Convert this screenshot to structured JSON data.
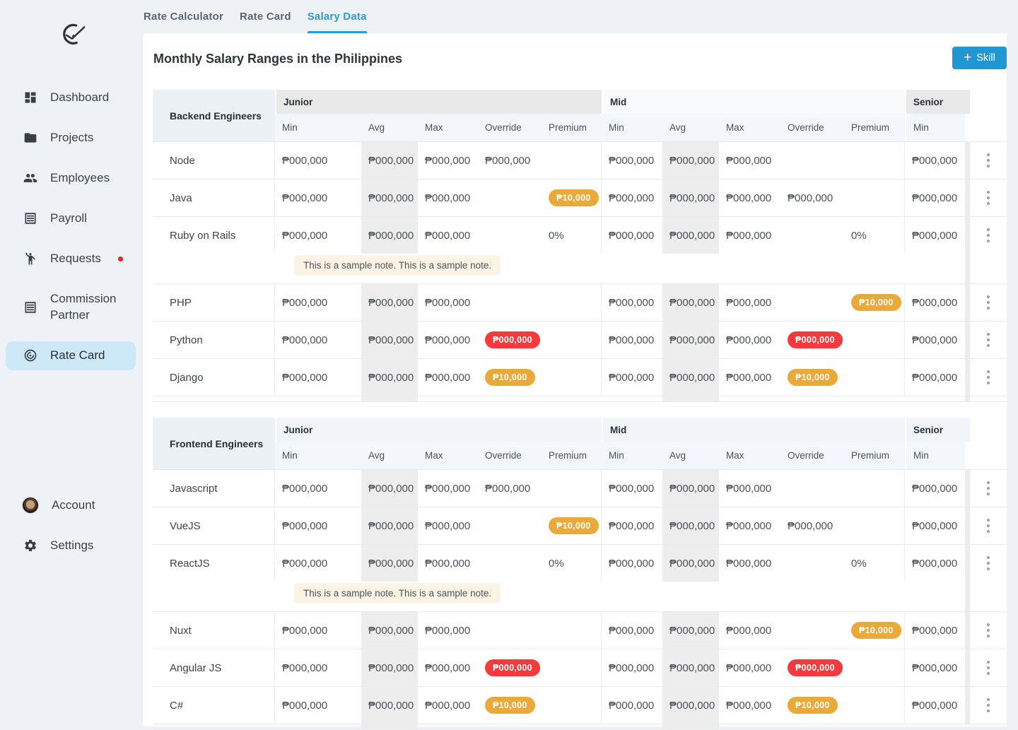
{
  "app": {
    "logo": "check-logo"
  },
  "colors": {
    "accent_blue": "#1f97d3",
    "active_tab_blue": "#2a9cd6",
    "active_item_bg": "#cde8f6",
    "badge_orange": "#e9a93b",
    "badge_red": "#f5393d",
    "notification_red": "#f71f1f",
    "avg_stripe": "#ededed",
    "note_bg": "#fbf3e3"
  },
  "sidebar": {
    "items": [
      {
        "label": "Dashboard",
        "icon": "dashboard-icon",
        "active": false
      },
      {
        "label": "Projects",
        "icon": "folder-icon",
        "active": false
      },
      {
        "label": "Employees",
        "icon": "people-icon",
        "active": false
      },
      {
        "label": "Payroll",
        "icon": "receipt-icon",
        "active": false
      },
      {
        "label": "Requests",
        "icon": "person-wave-icon",
        "active": false,
        "notification_dot": true
      },
      {
        "label": "Commission Partner",
        "icon": "receipt-icon",
        "active": false
      },
      {
        "label": "Rate Card",
        "icon": "payments-icon",
        "active": true
      }
    ],
    "footer_items": [
      {
        "label": "Account",
        "icon": "avatar"
      },
      {
        "label": "Settings",
        "icon": "gear-icon"
      }
    ]
  },
  "tabs": [
    {
      "label": "Rate Calculator",
      "active": false
    },
    {
      "label": "Rate Card",
      "active": false
    },
    {
      "label": "Salary Data",
      "active": true
    }
  ],
  "header": {
    "title": "Monthly Salary Ranges in the Philippines",
    "add_button_label": "Skill"
  },
  "tables": [
    {
      "title": "Backend Engineers",
      "band_bg": [
        "#e9e9e9",
        "#f8fafc",
        "#e9e9e9"
      ],
      "column_groups": [
        {
          "label": "Junior",
          "columns": [
            "Min",
            "Avg",
            "Max",
            "Override",
            "Premium"
          ]
        },
        {
          "label": "Mid",
          "columns": [
            "Min",
            "Avg",
            "Max",
            "Override",
            "Premium"
          ]
        },
        {
          "label": "Senior",
          "columns": [
            "Min"
          ]
        }
      ],
      "rows": [
        {
          "skill": "Node",
          "cells": [
            {
              "text": "₱000,000",
              "style": "text"
            },
            {
              "text": "₱000,000",
              "style": "text"
            },
            {
              "text": "₱000,000",
              "style": "text"
            },
            {
              "text": "₱000,000",
              "style": "text"
            },
            null,
            {
              "text": "₱000,000",
              "style": "text"
            },
            {
              "text": "₱000,000",
              "style": "text"
            },
            {
              "text": "₱000,000",
              "style": "text"
            },
            null,
            null,
            {
              "text": "₱000,000",
              "style": "text"
            }
          ],
          "note": null
        },
        {
          "skill": "Java",
          "cells": [
            {
              "text": "₱000,000",
              "style": "text"
            },
            {
              "text": "₱000,000",
              "style": "text"
            },
            {
              "text": "₱000,000",
              "style": "text"
            },
            null,
            {
              "text": "₱10,000",
              "style": "badge-orange"
            },
            {
              "text": "₱000,000",
              "style": "text"
            },
            {
              "text": "₱000,000",
              "style": "text"
            },
            {
              "text": "₱000,000",
              "style": "text"
            },
            {
              "text": "₱000,000",
              "style": "text"
            },
            null,
            {
              "text": "₱000,000",
              "style": "text"
            }
          ],
          "note": null
        },
        {
          "skill": "Ruby on Rails",
          "cells": [
            {
              "text": "₱000,000",
              "style": "text"
            },
            {
              "text": "₱000,000",
              "style": "text"
            },
            {
              "text": "₱000,000",
              "style": "text"
            },
            null,
            {
              "text": "0%",
              "style": "text"
            },
            {
              "text": "₱000,000",
              "style": "text"
            },
            {
              "text": "₱000,000",
              "style": "text"
            },
            {
              "text": "₱000,000",
              "style": "text"
            },
            null,
            {
              "text": "0%",
              "style": "text"
            },
            {
              "text": "₱000,000",
              "style": "text"
            }
          ],
          "note": "This is a sample note. This is a sample note."
        },
        {
          "skill": "PHP",
          "cells": [
            {
              "text": "₱000,000",
              "style": "text"
            },
            {
              "text": "₱000,000",
              "style": "text"
            },
            {
              "text": "₱000,000",
              "style": "text"
            },
            null,
            null,
            {
              "text": "₱000,000",
              "style": "text"
            },
            {
              "text": "₱000,000",
              "style": "text"
            },
            {
              "text": "₱000,000",
              "style": "text"
            },
            null,
            {
              "text": "₱10,000",
              "style": "badge-orange"
            },
            {
              "text": "₱000,000",
              "style": "text"
            }
          ],
          "note": null
        },
        {
          "skill": "Python",
          "cells": [
            {
              "text": "₱000,000",
              "style": "text"
            },
            {
              "text": "₱000,000",
              "style": "text"
            },
            {
              "text": "₱000,000",
              "style": "text"
            },
            {
              "text": "₱000,000",
              "style": "badge-red"
            },
            null,
            {
              "text": "₱000,000",
              "style": "text"
            },
            {
              "text": "₱000,000",
              "style": "text"
            },
            {
              "text": "₱000,000",
              "style": "text"
            },
            {
              "text": "₱000,000",
              "style": "badge-red"
            },
            null,
            {
              "text": "₱000,000",
              "style": "text"
            }
          ],
          "note": null
        },
        {
          "skill": "Django",
          "cells": [
            {
              "text": "₱000,000",
              "style": "text"
            },
            {
              "text": "₱000,000",
              "style": "text"
            },
            {
              "text": "₱000,000",
              "style": "text"
            },
            {
              "text": "₱10,000",
              "style": "badge-orange"
            },
            null,
            {
              "text": "₱000,000",
              "style": "text"
            },
            {
              "text": "₱000,000",
              "style": "text"
            },
            {
              "text": "₱000,000",
              "style": "text"
            },
            {
              "text": "₱10,000",
              "style": "badge-orange"
            },
            null,
            {
              "text": "₱000,000",
              "style": "text"
            }
          ],
          "note": null
        }
      ],
      "sliver_badges": false
    },
    {
      "title": "Frontend Engineers",
      "band_bg": [
        "#f1f5f9",
        "#f1f5f9",
        "#f1f5f9"
      ],
      "column_groups": [
        {
          "label": "Junior",
          "columns": [
            "Min",
            "Avg",
            "Max",
            "Override",
            "Premium"
          ]
        },
        {
          "label": "Mid",
          "columns": [
            "Min",
            "Avg",
            "Max",
            "Override",
            "Premium"
          ]
        },
        {
          "label": "Senior",
          "columns": [
            "Min"
          ]
        }
      ],
      "rows": [
        {
          "skill": "Javascript",
          "cells": [
            {
              "text": "₱000,000",
              "style": "text"
            },
            {
              "text": "₱000,000",
              "style": "text"
            },
            {
              "text": "₱000,000",
              "style": "text"
            },
            {
              "text": "₱000,000",
              "style": "text"
            },
            null,
            {
              "text": "₱000,000",
              "style": "text"
            },
            {
              "text": "₱000,000",
              "style": "text"
            },
            {
              "text": "₱000,000",
              "style": "text"
            },
            null,
            null,
            {
              "text": "₱000,000",
              "style": "text"
            }
          ],
          "note": null
        },
        {
          "skill": "VueJS",
          "cells": [
            {
              "text": "₱000,000",
              "style": "text"
            },
            {
              "text": "₱000,000",
              "style": "text"
            },
            {
              "text": "₱000,000",
              "style": "text"
            },
            null,
            {
              "text": "₱10,000",
              "style": "badge-orange"
            },
            {
              "text": "₱000,000",
              "style": "text"
            },
            {
              "text": "₱000,000",
              "style": "text"
            },
            {
              "text": "₱000,000",
              "style": "text"
            },
            {
              "text": "₱000,000",
              "style": "text"
            },
            null,
            {
              "text": "₱000,000",
              "style": "text"
            }
          ],
          "note": null
        },
        {
          "skill": "ReactJS",
          "cells": [
            {
              "text": "₱000,000",
              "style": "text"
            },
            {
              "text": "₱000,000",
              "style": "text"
            },
            {
              "text": "₱000,000",
              "style": "text"
            },
            null,
            {
              "text": "0%",
              "style": "text"
            },
            {
              "text": "₱000,000",
              "style": "text"
            },
            {
              "text": "₱000,000",
              "style": "text"
            },
            {
              "text": "₱000,000",
              "style": "text"
            },
            null,
            {
              "text": "0%",
              "style": "text"
            },
            {
              "text": "₱000,000",
              "style": "text"
            }
          ],
          "note": "This is a sample note. This is a sample note."
        },
        {
          "skill": "Nuxt",
          "cells": [
            {
              "text": "₱000,000",
              "style": "text"
            },
            {
              "text": "₱000,000",
              "style": "text"
            },
            {
              "text": "₱000,000",
              "style": "text"
            },
            null,
            null,
            {
              "text": "₱000,000",
              "style": "text"
            },
            {
              "text": "₱000,000",
              "style": "text"
            },
            {
              "text": "₱000,000",
              "style": "text"
            },
            null,
            {
              "text": "₱10,000",
              "style": "badge-orange"
            },
            {
              "text": "₱000,000",
              "style": "text"
            }
          ],
          "note": null
        },
        {
          "skill": "Angular JS",
          "cells": [
            {
              "text": "₱000,000",
              "style": "text"
            },
            {
              "text": "₱000,000",
              "style": "text"
            },
            {
              "text": "₱000,000",
              "style": "text"
            },
            {
              "text": "₱000,000",
              "style": "badge-red"
            },
            null,
            {
              "text": "₱000,000",
              "style": "text"
            },
            {
              "text": "₱000,000",
              "style": "text"
            },
            {
              "text": "₱000,000",
              "style": "text"
            },
            {
              "text": "₱000,000",
              "style": "badge-red"
            },
            null,
            {
              "text": "₱000,000",
              "style": "text"
            }
          ],
          "note": null
        },
        {
          "skill": "C#",
          "cells": [
            {
              "text": "₱000,000",
              "style": "text"
            },
            {
              "text": "₱000,000",
              "style": "text"
            },
            {
              "text": "₱000,000",
              "style": "text"
            },
            {
              "text": "₱10,000",
              "style": "badge-orange"
            },
            null,
            {
              "text": "₱000,000",
              "style": "text"
            },
            {
              "text": "₱000,000",
              "style": "text"
            },
            {
              "text": "₱000,000",
              "style": "text"
            },
            {
              "text": "₱10,000",
              "style": "badge-orange"
            },
            null,
            {
              "text": "₱000,000",
              "style": "text"
            }
          ],
          "note": null
        }
      ],
      "sliver_badges": true
    }
  ]
}
